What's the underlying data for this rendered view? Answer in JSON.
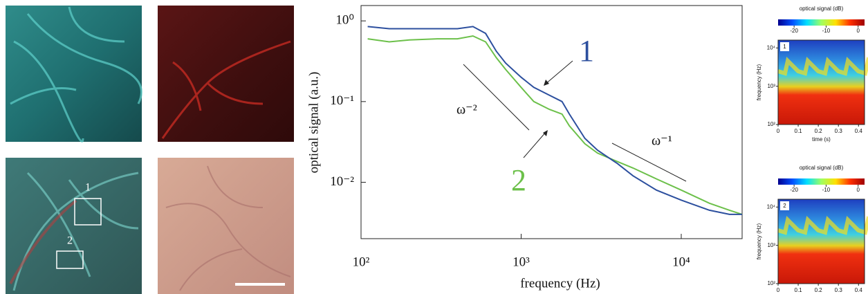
{
  "images": {
    "labels": [
      "1",
      "2"
    ]
  },
  "chart_data": [
    {
      "type": "line",
      "xlabel": "frequency (Hz)",
      "ylabel": "optical signal (a.u.)",
      "log_x": true,
      "log_y": true,
      "xlim": [
        100,
        24000
      ],
      "ylim": [
        0.002,
        1.55
      ],
      "xticks": [
        {
          "value": 100,
          "label": "10²"
        },
        {
          "value": 1000,
          "label": "10³"
        },
        {
          "value": 10000,
          "label": "10⁴"
        }
      ],
      "yticks": [
        {
          "value": 0.01,
          "label": "10⁻²"
        },
        {
          "value": 0.1,
          "label": "10⁻¹"
        },
        {
          "value": 1,
          "label": "10⁰"
        }
      ],
      "x": [
        110,
        150,
        200,
        300,
        400,
        500,
        600,
        700,
        800,
        1000,
        1200,
        1500,
        1800,
        2000,
        2500,
        3000,
        4000,
        5000,
        7000,
        10000,
        15000,
        20000,
        24000
      ],
      "series": [
        {
          "name": "1",
          "color": "#2c4f9e",
          "values": [
            0.85,
            0.8,
            0.8,
            0.8,
            0.8,
            0.85,
            0.7,
            0.42,
            0.3,
            0.2,
            0.15,
            0.12,
            0.1,
            0.07,
            0.035,
            0.025,
            0.017,
            0.012,
            0.008,
            0.006,
            0.0045,
            0.004,
            0.004
          ]
        },
        {
          "name": "2",
          "color": "#6cc04a",
          "values": [
            0.6,
            0.55,
            0.58,
            0.6,
            0.6,
            0.65,
            0.55,
            0.35,
            0.25,
            0.15,
            0.1,
            0.08,
            0.07,
            0.05,
            0.03,
            0.023,
            0.018,
            0.015,
            0.011,
            0.008,
            0.0055,
            0.0045,
            0.004
          ]
        }
      ],
      "annotations": [
        "ω⁻²",
        "ω⁻¹"
      ]
    },
    {
      "type": "heatmap",
      "label": "1",
      "colorbar_title": "optical signal (dB)",
      "colorbar_lim": [
        -25,
        2
      ],
      "colorbar_ticks": [
        -20,
        -10,
        0
      ],
      "colormap": [
        "#00008f",
        "#0050ff",
        "#00dfff",
        "#9fff60",
        "#ffe000",
        "#ff3000",
        "#9f0000"
      ],
      "xlabel": "time (s)",
      "ylabel": "frequency (Hz)",
      "xlim": [
        0,
        0.43
      ],
      "xticks": [
        0,
        0.1,
        0.2,
        0.3,
        0.4
      ],
      "log_y": true,
      "ylim": [
        100,
        16000
      ],
      "yticks": [
        {
          "value": 100,
          "label": "10²"
        },
        {
          "value": 1000,
          "label": "10³"
        },
        {
          "value": 10000,
          "label": "10⁴"
        }
      ]
    },
    {
      "type": "heatmap",
      "label": "2",
      "colorbar_title": "optical signal (dB)",
      "colorbar_lim": [
        -25,
        2
      ],
      "colorbar_ticks": [
        -20,
        -10,
        0
      ],
      "colormap": [
        "#00008f",
        "#0050ff",
        "#00dfff",
        "#9fff60",
        "#ffe000",
        "#ff3000",
        "#9f0000"
      ],
      "xlabel": "time (s)",
      "ylabel": "frequency (Hz)",
      "xlim": [
        0,
        0.43
      ],
      "xticks": [
        0,
        0.1,
        0.2,
        0.3,
        0.4
      ],
      "log_y": true,
      "ylim": [
        100,
        16000
      ],
      "yticks": [
        {
          "value": 100,
          "label": "10²"
        },
        {
          "value": 1000,
          "label": "10³"
        },
        {
          "value": 10000,
          "label": "10⁴"
        }
      ]
    }
  ]
}
